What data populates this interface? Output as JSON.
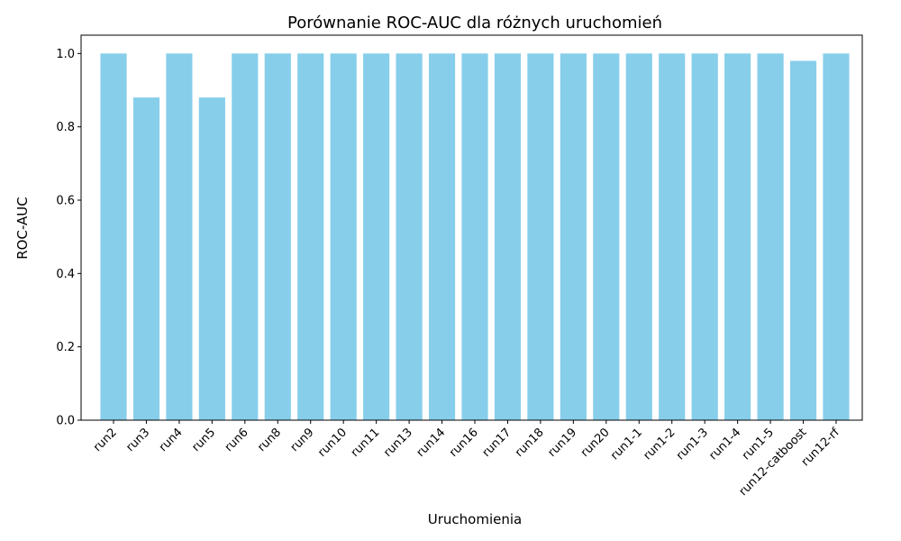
{
  "chart_data": {
    "type": "bar",
    "title": "Porównanie ROC-AUC dla różnych uruchomień",
    "xlabel": "Uruchomienia",
    "ylabel": "ROC-AUC",
    "ylim": [
      0,
      1.05
    ],
    "yticks": [
      0.0,
      0.2,
      0.4,
      0.6,
      0.8,
      1.0
    ],
    "ytick_labels": [
      "0.0",
      "0.2",
      "0.4",
      "0.6",
      "0.8",
      "1.0"
    ],
    "grid": false,
    "bar_color": "#87CEEB",
    "categories": [
      "run2",
      "run3",
      "run4",
      "run5",
      "run6",
      "run8",
      "run9",
      "run10",
      "run11",
      "run13",
      "run14",
      "run16",
      "run17",
      "run18",
      "run19",
      "run20",
      "run1-1",
      "run1-2",
      "run1-3",
      "run1-4",
      "run1-5",
      "run12-catboost",
      "run12-rf"
    ],
    "values": [
      1.0,
      0.88,
      1.0,
      0.88,
      1.0,
      1.0,
      1.0,
      1.0,
      1.0,
      1.0,
      1.0,
      1.0,
      1.0,
      1.0,
      1.0,
      1.0,
      1.0,
      1.0,
      1.0,
      1.0,
      1.0,
      0.98,
      1.0
    ]
  }
}
